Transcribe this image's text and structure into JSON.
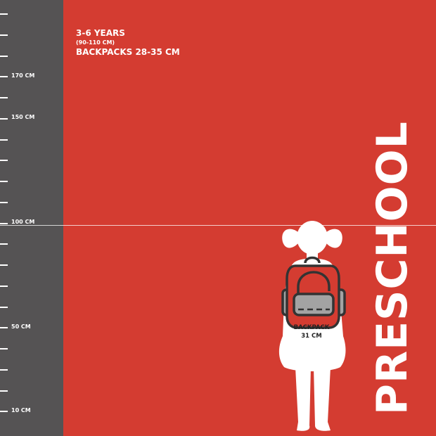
{
  "ruler": {
    "labels": {
      "l170": "170 CM",
      "l150": "150 CM",
      "l100": "100 CM",
      "l50": "50 CM",
      "l10": "10 CM"
    }
  },
  "info": {
    "age": "3-6 YEARS",
    "height_range": "(90-110 CM)",
    "backpack_range": "BACKPACKS 28-35 CM"
  },
  "title": "PRESCHOOL",
  "backpack": {
    "label": "BACKPACK",
    "size": "31 CM"
  },
  "colors": {
    "background": "#d43c31",
    "ruler": "#555354",
    "backpack": "#d43c31",
    "pocket": "#a3a3a3",
    "outline": "#333333"
  }
}
